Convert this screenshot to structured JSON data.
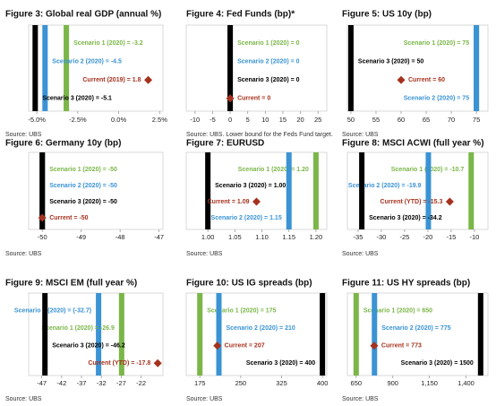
{
  "chart_data": [
    {
      "type": "scenario",
      "title": "Figure 3: Global real GDP (annual %)",
      "xlim": [
        -5.5,
        2.7
      ],
      "xticks": [
        {
          "value": -5,
          "label": "-5.0%"
        },
        {
          "value": -2.5,
          "label": "-2.5%"
        },
        {
          "value": 0,
          "label": "0.0%"
        },
        {
          "value": 2.5,
          "label": "2.5%"
        }
      ],
      "source": "Source: UBS",
      "markers": [
        {
          "kind": "line",
          "label": "Scenario 1 (2020) = -3.2",
          "value": -3.2,
          "color": "#7ab648"
        },
        {
          "kind": "line",
          "label": "Scenario 2 (2020) = -4.5",
          "value": -4.5,
          "color": "#3a93d4"
        },
        {
          "kind": "point",
          "label": "Current (2019) = 1.8",
          "value": 1.8,
          "color": "#a5321e"
        },
        {
          "kind": "line",
          "label": "Scenario 3 (2020) = -5.1",
          "value": -5.1,
          "color": "#000000"
        }
      ]
    },
    {
      "type": "scenario",
      "title": "Figure 4: Fed Funds (bp)*",
      "xlim": [
        -12.5,
        27.5
      ],
      "xticks": [
        -10,
        -5,
        0,
        5,
        10,
        15,
        20,
        25
      ],
      "source": "Source: UBS. Lower bound for the Feds Fund target.",
      "markers": [
        {
          "kind": "line",
          "label": "Scenario 1 (2020) = 0",
          "value": 0,
          "color": "#7ab648"
        },
        {
          "kind": "line",
          "label": "Scenario 2 (2020) = 0",
          "value": 0,
          "color": "#3a93d4"
        },
        {
          "kind": "line",
          "label": "Scenario 3 (2020) = 0",
          "value": 0,
          "color": "#000000"
        },
        {
          "kind": "point",
          "label": "Current = 0",
          "value": 0,
          "color": "#a5321e"
        }
      ]
    },
    {
      "type": "scenario",
      "title": "Figure 5: US 10y (bp)",
      "xlim": [
        49.3,
        77.3
      ],
      "xticks": [
        50,
        55,
        60,
        65,
        70,
        75
      ],
      "source": "Source: UBS",
      "markers": [
        {
          "kind": "line",
          "label": "Scenario 1 (2020) = 75",
          "value": 75,
          "color": "#7ab648"
        },
        {
          "kind": "line",
          "label": "Scenario 3 (2020) = 50",
          "value": 50,
          "color": "#000000"
        },
        {
          "kind": "point",
          "label": "Current = 60",
          "value": 60,
          "color": "#a5321e"
        },
        {
          "kind": "line",
          "label": "Scenario 2 (2020) = 75",
          "value": 75,
          "color": "#3a93d4"
        }
      ]
    },
    {
      "type": "scenario",
      "title": "Figure 6: Germany 10y (bp)",
      "xlim": [
        -50.35,
        -46.9
      ],
      "xticks": [
        -50,
        -49,
        -48,
        -47
      ],
      "source": "Source: UBS",
      "markers": [
        {
          "kind": "line",
          "label": "Scenario 1 (2020) = -50",
          "value": -50,
          "color": "#7ab648"
        },
        {
          "kind": "line",
          "label": "Scenario 2 (2020) = -50",
          "value": -50,
          "color": "#3a93d4"
        },
        {
          "kind": "line",
          "label": "Scenario 3 (2020) = -50",
          "value": -50,
          "color": "#000000"
        },
        {
          "kind": "point",
          "label": "Current = -50",
          "value": -50,
          "color": "#a5321e"
        }
      ]
    },
    {
      "type": "scenario",
      "title": "Figure 7: EURUSD",
      "xlim": [
        0.96,
        1.22
      ],
      "xticks": [
        {
          "value": 1.0,
          "label": "1.00"
        },
        1.05,
        {
          "value": 1.1,
          "label": "1.10"
        },
        1.15,
        {
          "value": 1.2,
          "label": "1.20"
        }
      ],
      "source": "Source: UBS",
      "markers": [
        {
          "kind": "line",
          "label": "Scenario 1 (2020) = 1.20",
          "value": 1.2,
          "color": "#7ab648"
        },
        {
          "kind": "line",
          "label": "Scenario 3 (2020) = 1.00",
          "value": 1.0,
          "color": "#000000"
        },
        {
          "kind": "point",
          "label": "Current = 1.09",
          "value": 1.09,
          "color": "#a5321e"
        },
        {
          "kind": "line",
          "label": "Scenario 2 (2020) = 1.15",
          "value": 1.15,
          "color": "#3a93d4"
        }
      ]
    },
    {
      "type": "scenario",
      "title": "Figure 8: MSCI ACWI (full year %)",
      "xlim": [
        -37.3,
        -7.1
      ],
      "xticks": [
        -35,
        -30,
        -25,
        -20,
        -15,
        -10
      ],
      "source": "Source: UBS",
      "markers": [
        {
          "kind": "line",
          "label": "Scenario 1 (2020) = -10.7",
          "value": -10.7,
          "color": "#7ab648"
        },
        {
          "kind": "line",
          "label": "Scenario 2 (2020) = -19.9",
          "value": -19.9,
          "color": "#3a93d4"
        },
        {
          "kind": "point",
          "label": "Current (YTD) = -15.3",
          "value": -15.3,
          "color": "#a5321e"
        },
        {
          "kind": "line",
          "label": "Scenario 3 (2020) = -34.2",
          "value": -34.2,
          "color": "#000000"
        }
      ]
    },
    {
      "type": "scenario",
      "title": "Figure 9: MSCI EM (full year %)",
      "xlim": [
        -50.3,
        -16.5
      ],
      "xticks": [
        -47,
        -42,
        -37,
        -32,
        -27,
        -22
      ],
      "source": "Source: UBS",
      "markers": [
        {
          "kind": "line",
          "label": "Scenario 2 (2020) = (-32.7)",
          "value": -32.7,
          "color": "#3a93d4"
        },
        {
          "kind": "line",
          "label": "Scenario 1 (2020) = -26.9",
          "value": -26.9,
          "color": "#7ab648"
        },
        {
          "kind": "line",
          "label": "Scenario 3 (2020) = -46.2",
          "value": -46.2,
          "color": "#000000"
        },
        {
          "kind": "point",
          "label": "Current (YTD) = -17.8",
          "value": -17.8,
          "color": "#a5321e"
        }
      ]
    },
    {
      "type": "scenario",
      "title": "Figure 10: US IG spreads (bp)",
      "xlim": [
        150,
        408
      ],
      "xticks": [
        175,
        250,
        325,
        400
      ],
      "source": "Source: UBS",
      "markers": [
        {
          "kind": "line",
          "label": "Scenario 1 (2020) = 175",
          "value": 175,
          "color": "#7ab648"
        },
        {
          "kind": "line",
          "label": "Scenario 2 (2020) = 210",
          "value": 210,
          "color": "#3a93d4"
        },
        {
          "kind": "point",
          "label": "Current = 207",
          "value": 207,
          "color": "#a5321e"
        },
        {
          "kind": "line",
          "label": "Scenario 3 (2020) = 400",
          "value": 400,
          "color": "#000000"
        }
      ]
    },
    {
      "type": "scenario",
      "title": "Figure 11: US HY spreads (bp)",
      "xlim": [
        590,
        1550
      ],
      "xticks": [
        650,
        900,
        {
          "value": 1150,
          "label": "1,150"
        },
        {
          "value": 1400,
          "label": "1,400"
        }
      ],
      "source": "Source: UBS",
      "markers": [
        {
          "kind": "line",
          "label": "Scenario 1 (2020) = 650",
          "value": 650,
          "color": "#7ab648"
        },
        {
          "kind": "line",
          "label": "Scenario 2 (2020) = 775",
          "value": 775,
          "color": "#3a93d4"
        },
        {
          "kind": "point",
          "label": "Current = 773",
          "value": 773,
          "color": "#a5321e"
        },
        {
          "kind": "line",
          "label": "Scenario 3 (2020) = 1500",
          "value": 1500,
          "color": "#000000"
        }
      ]
    }
  ]
}
